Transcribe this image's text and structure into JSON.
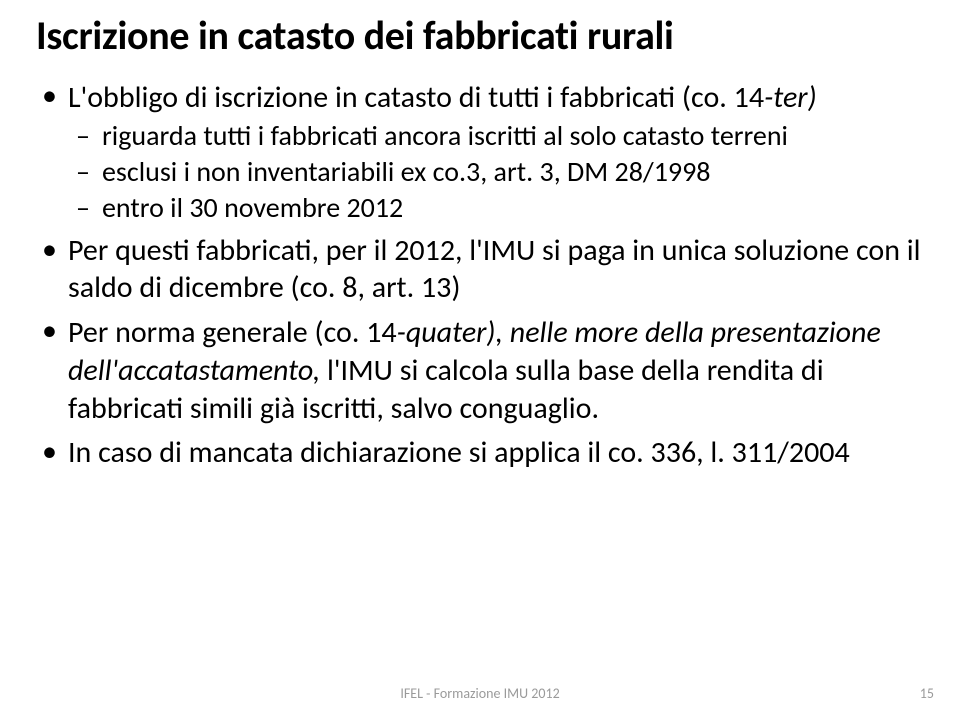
{
  "title": "Iscrizione in catasto dei fabbricati rurali",
  "title_color": "#000000",
  "title_fontsize": 40,
  "body_color": "#000000",
  "body_fontsize": 30,
  "sub_fontsize": 28,
  "bullets": [
    {
      "text_before_italic": "L'obbligo di iscrizione in catasto di tutti i fabbricati (co. 14",
      "italic": "-ter)",
      "text_after_italic": "",
      "sub": [
        {
          "text": "riguarda tutti i fabbricati ancora iscritti al solo catasto terreni"
        },
        {
          "text": "esclusi i non inventariabili ex co.3, art. 3, DM 28/1998"
        },
        {
          "text": "entro il 30 novembre 2012"
        }
      ]
    },
    {
      "text": "Per questi fabbricati, per il 2012, l'IMU si paga in unica soluzione con il saldo di dicembre (co. 8, art. 13)"
    },
    {
      "text_before_italic": "Per norma generale (co. 14",
      "italic": "-quater), nelle more della presentazione dell'accatastamento, ",
      "text_after_italic": "l'IMU si calcola sulla base della rendita di fabbricati simili già iscritti, salvo conguaglio."
    },
    {
      "text": "In caso di mancata dichiarazione si applica il co. 336, l. 311/2004"
    }
  ],
  "footer": {
    "text": "IFEL - Formazione IMU 2012",
    "color": "#9a9a9a",
    "fontsize": 14
  },
  "page_number": {
    "text": "15",
    "color": "#9a9a9a",
    "fontsize": 14
  },
  "background_color": "#ffffff"
}
